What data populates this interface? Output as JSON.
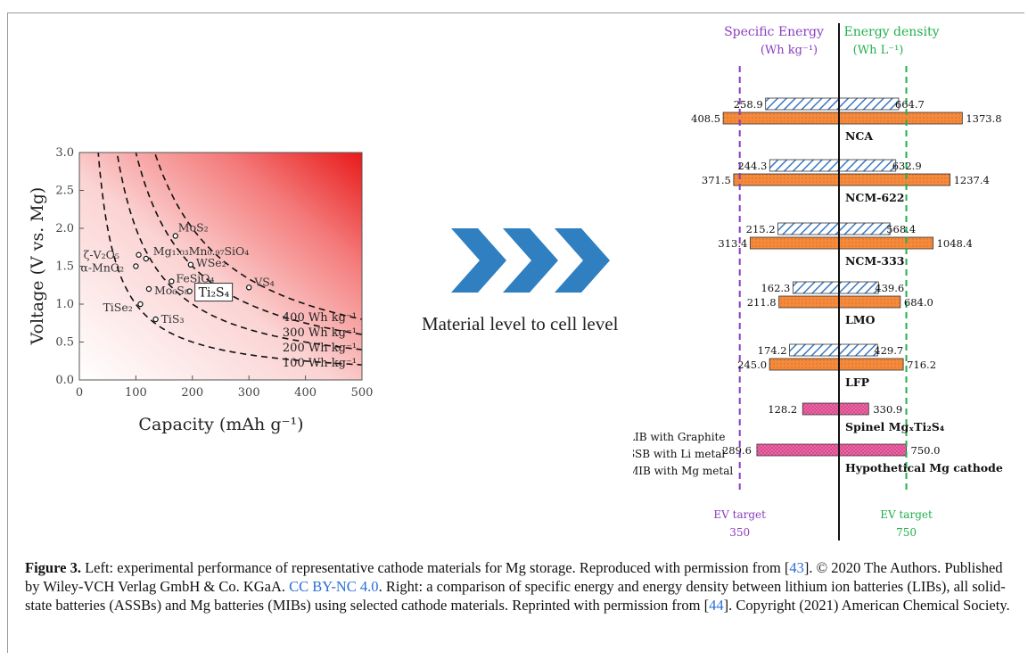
{
  "left_chart": {
    "ylabel": "Voltage (V vs. Mg)",
    "xlabel": "Capacity (mAh g⁻¹)",
    "xlim": [
      0,
      500
    ],
    "ylim": [
      0.0,
      3.0
    ],
    "x_ticks": [
      "0",
      "100",
      "200",
      "300",
      "400",
      "500"
    ],
    "y_ticks": [
      "0.0",
      "0.5",
      "1.0",
      "1.5",
      "2.0",
      "2.5",
      "3.0"
    ],
    "curves": [
      {
        "energy": 100,
        "label": "100 Wh kg⁻¹"
      },
      {
        "energy": 200,
        "label": "200 Wh kg⁻¹"
      },
      {
        "energy": 300,
        "label": "300 Wh kg⁻¹"
      },
      {
        "energy": 400,
        "label": "400 Wh kg⁻¹"
      }
    ],
    "points": [
      {
        "name": "MoS₂",
        "x": 170,
        "y": 1.9
      },
      {
        "name": "ζ-V₂O₅",
        "x": 105,
        "y": 1.65
      },
      {
        "name": "Mg₁.₀₃Mn₀.₉₇SiO₄",
        "x": 118,
        "y": 1.6
      },
      {
        "name": "α-MnO₂",
        "x": 100,
        "y": 1.5
      },
      {
        "name": "WSe₂",
        "x": 197,
        "y": 1.52
      },
      {
        "name": "FeSiO₄",
        "x": 163,
        "y": 1.3
      },
      {
        "name": "VS₄",
        "x": 300,
        "y": 1.22
      },
      {
        "name": "Mo₆S₈",
        "x": 123,
        "y": 1.2
      },
      {
        "name": "Ti₂S₄",
        "x": 195,
        "y": 1.17
      },
      {
        "name": "TiSe₂",
        "x": 108,
        "y": 1.0
      },
      {
        "name": "TiS₃",
        "x": 135,
        "y": 0.8
      }
    ]
  },
  "arrow_label": "Material level to cell level",
  "right_chart": {
    "header_left": [
      "Specific Energy",
      "(Wh kg⁻¹)"
    ],
    "header_right": [
      "Energy density",
      "(Wh L⁻¹)"
    ],
    "ev_target_left": [
      "EV target",
      "350"
    ],
    "ev_target_right": [
      "EV target",
      "750"
    ],
    "colors": {
      "lib": "#3a78c2",
      "ssb": "#f58a3c",
      "mib": "#e9559b",
      "left_target": "#8b3dbf",
      "right_target": "#22b04b"
    },
    "legend": [
      {
        "key": "lib",
        "label": "LIB with Graphite"
      },
      {
        "key": "ssb",
        "label": "SSB with Li metal"
      },
      {
        "key": "mib",
        "label": "MIB with Mg metal"
      }
    ],
    "chart_data": {
      "type": "bar",
      "categories": [
        "NCA",
        "NCM-622",
        "NCM-333",
        "LMO",
        "LFP",
        "Spinel MgₓTi₂S₄",
        "Hypothetical Mg cathode"
      ],
      "series": [
        {
          "name": "LIB with Graphite",
          "specific_energy": [
            258.9,
            244.3,
            215.2,
            162.3,
            174.2,
            null,
            null
          ],
          "energy_density": [
            664.7,
            632.9,
            568.4,
            439.6,
            429.7,
            null,
            null
          ]
        },
        {
          "name": "SSB with Li metal",
          "specific_energy": [
            408.5,
            371.5,
            313.4,
            211.8,
            245.0,
            null,
            null
          ],
          "energy_density": [
            1373.8,
            1237.4,
            1048.4,
            684.0,
            716.2,
            null,
            null
          ]
        },
        {
          "name": "MIB with Mg metal",
          "specific_energy": [
            null,
            null,
            null,
            null,
            null,
            128.2,
            289.6
          ],
          "energy_density": [
            null,
            null,
            null,
            null,
            null,
            330.9,
            750.0
          ]
        }
      ],
      "labels": {
        "lib_left": [
          "258.9",
          "244.3",
          "215.2",
          "162.3",
          "174.2"
        ],
        "lib_right": [
          "664.7",
          "632.9",
          "568.4",
          "439.6",
          "429.7"
        ],
        "ssb_left": [
          "408.5",
          "371.5",
          "313.4",
          "211.8",
          "245.0"
        ],
        "ssb_right": [
          "1373.8",
          "1237.4",
          "1048.4",
          "684.0",
          "716.2"
        ],
        "mib_left": [
          "128.2",
          "289.6"
        ],
        "mib_right": [
          "330.9",
          "750.0"
        ]
      }
    }
  },
  "caption": {
    "bold": "Figure 3.",
    "part1": " Left: experimental performance of representative cathode materials for Mg storage. Reproduced with permission from [",
    "ref1": "43",
    "part2": "]. © 2020 The Authors. Published by Wiley-VCH Verlag GmbH & Co. KGaA. ",
    "license": "CC BY-NC 4.0",
    "part3": ". Right: a comparison of specific energy and energy density between lithium ion batteries (LIBs), all solid-state batteries (ASSBs) and Mg batteries (MIBs) using selected cathode materials. Reprinted with permission from [",
    "ref2": "44",
    "part4": "]. Copyright (2021) American Chemical Society."
  }
}
